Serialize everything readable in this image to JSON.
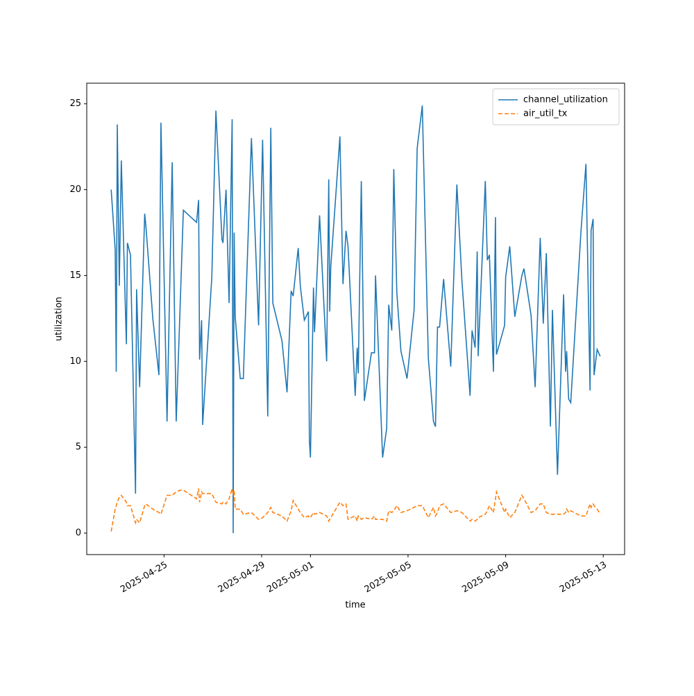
{
  "chart_data": {
    "type": "line",
    "xlabel": "time",
    "ylabel": "utilization",
    "x": [
      "2025-04-22T20:00",
      "2025-04-23T00:00",
      "2025-04-23T01:00",
      "2025-04-23T02:00",
      "2025-04-23T04:00",
      "2025-04-23T06:00",
      "2025-04-23T11:00",
      "2025-04-23T12:00",
      "2025-04-23T15:00",
      "2025-04-23T20:00",
      "2025-04-23T21:00",
      "2025-04-24T00:00",
      "2025-04-24T05:00",
      "2025-04-24T06:00",
      "2025-04-24T13:00",
      "2025-04-24T19:00",
      "2025-04-24T21:00",
      "2025-04-25T03:00",
      "2025-04-25T08:00",
      "2025-04-25T12:00",
      "2025-04-25T16:00",
      "2025-04-25T19:00",
      "2025-04-26T08:00",
      "2025-04-26T10:00",
      "2025-04-26T11:00",
      "2025-04-26T13:00",
      "2025-04-26T14:00",
      "2025-04-26T23:00",
      "2025-04-27T03:00",
      "2025-04-27T09:00",
      "2025-04-27T10:00",
      "2025-04-27T13:00",
      "2025-04-27T16:00",
      "2025-04-27T19:00",
      "2025-04-27T20:00",
      "2025-04-27T21:00",
      "2025-04-27T22:00",
      "2025-04-28T03:00",
      "2025-04-28T06:00",
      "2025-04-28T14:00",
      "2025-04-28T21:00",
      "2025-04-29T01:00",
      "2025-04-29T06:00",
      "2025-04-29T09:00",
      "2025-04-29T11:00",
      "2025-04-29T20:00",
      "2025-04-30T01:00",
      "2025-04-30T05:00",
      "2025-04-30T07:00",
      "2025-04-30T12:00",
      "2025-04-30T14:00",
      "2025-04-30T18:00",
      "2025-04-30T22:00",
      "2025-04-30T23:00",
      "2025-05-01T00:00",
      "2025-05-01T03:00",
      "2025-05-01T04:00",
      "2025-05-01T09:00",
      "2025-05-01T16:00",
      "2025-05-01T18:00",
      "2025-05-01T19:00",
      "2025-05-01T20:00",
      "2025-05-02T05:00",
      "2025-05-02T08:00",
      "2025-05-02T11:00",
      "2025-05-02T13:00",
      "2025-05-02T16:00",
      "2025-05-02T20:00",
      "2025-05-02T22:00",
      "2025-05-02T23:00",
      "2025-05-03T02:00",
      "2025-05-03T05:00",
      "2025-05-03T12:00",
      "2025-05-03T15:00",
      "2025-05-03T16:00",
      "2025-05-03T23:00",
      "2025-05-04T03:00",
      "2025-05-04T05:00",
      "2025-05-04T08:00",
      "2025-05-04T10:00",
      "2025-05-04T13:00",
      "2025-05-04T17:00",
      "2025-05-04T23:00",
      "2025-05-05T06:00",
      "2025-05-05T09:00",
      "2025-05-05T14:00",
      "2025-05-05T20:00",
      "2025-05-06T01:00",
      "2025-05-06T03:00",
      "2025-05-06T05:00",
      "2025-05-06T07:00",
      "2025-05-06T11:00",
      "2025-05-06T18:00",
      "2025-05-07T00:00",
      "2025-05-07T05:00",
      "2025-05-07T13:00",
      "2025-05-07T15:00",
      "2025-05-07T18:00",
      "2025-05-07T20:00",
      "2025-05-07T21:00",
      "2025-05-08T04:00",
      "2025-05-08T06:00",
      "2025-05-08T08:00",
      "2025-05-08T12:00",
      "2025-05-08T14:00",
      "2025-05-08T15:00",
      "2025-05-08T23:00",
      "2025-05-09T00:00",
      "2025-05-09T04:00",
      "2025-05-09T09:00",
      "2025-05-09T16:00",
      "2025-05-09T18:00",
      "2025-05-10T01:00",
      "2025-05-10T05:00",
      "2025-05-10T10:00",
      "2025-05-10T13:00",
      "2025-05-10T16:00",
      "2025-05-10T20:00",
      "2025-05-10T22:00",
      "2025-05-11T03:00",
      "2025-05-11T09:00",
      "2025-05-11T11:00",
      "2025-05-11T12:00",
      "2025-05-11T14:00",
      "2025-05-11T16:00",
      "2025-05-12T02:00",
      "2025-05-12T07:00",
      "2025-05-12T11:00",
      "2025-05-12T12:00",
      "2025-05-12T14:00",
      "2025-05-12T15:00",
      "2025-05-12T18:00",
      "2025-05-12T21:00"
    ],
    "series": [
      {
        "name": "channel_utilization",
        "color": "#1f77b4",
        "linestyle": "solid",
        "values": [
          20.0,
          16.5,
          9.4,
          23.8,
          14.4,
          21.7,
          11.0,
          16.9,
          16.2,
          2.3,
          14.2,
          8.5,
          18.6,
          18.0,
          12.5,
          9.2,
          23.9,
          6.5,
          21.6,
          6.5,
          13.5,
          18.8,
          18.1,
          19.4,
          10.1,
          12.4,
          6.3,
          14.9,
          24.6,
          17.1,
          16.9,
          20.0,
          13.4,
          24.1,
          0.0,
          17.5,
          12.6,
          9.0,
          9.0,
          23.0,
          12.1,
          22.9,
          6.8,
          23.6,
          13.4,
          11.2,
          8.2,
          14.1,
          13.8,
          16.6,
          14.4,
          12.4,
          12.9,
          5.4,
          4.4,
          14.3,
          11.7,
          18.5,
          10.0,
          20.6,
          12.9,
          15.5,
          23.1,
          14.5,
          17.6,
          16.7,
          13.0,
          8.0,
          10.8,
          9.3,
          20.5,
          7.7,
          10.5,
          10.5,
          15.0,
          4.4,
          6.1,
          13.3,
          11.8,
          21.2,
          14.0,
          10.6,
          9.0,
          13.0,
          22.4,
          24.9,
          10.2,
          6.5,
          6.2,
          12.0,
          12.0,
          14.8,
          9.7,
          20.3,
          14.7,
          8.0,
          11.8,
          10.8,
          16.4,
          10.3,
          20.5,
          15.9,
          16.2,
          9.4,
          18.4,
          10.4,
          12.1,
          14.9,
          16.7,
          12.6,
          15.0,
          15.4,
          12.7,
          8.5,
          17.2,
          12.2,
          16.3,
          6.2,
          13.0,
          3.4,
          13.9,
          9.4,
          10.6,
          7.8,
          7.6,
          17.5,
          21.5,
          8.3,
          17.6,
          18.3,
          9.2,
          10.7,
          10.3
        ]
      },
      {
        "name": "air_util_tx",
        "color": "#ff7f0e",
        "linestyle": "dashed",
        "values": [
          0.1,
          1.4,
          1.6,
          1.8,
          2.1,
          2.2,
          1.8,
          1.6,
          1.6,
          0.6,
          0.8,
          0.6,
          1.6,
          1.7,
          1.4,
          1.2,
          1.1,
          2.2,
          2.2,
          2.4,
          2.5,
          2.5,
          2.0,
          2.6,
          1.8,
          2.4,
          2.3,
          2.3,
          1.8,
          1.7,
          1.8,
          1.7,
          2.0,
          2.6,
          2.2,
          2.5,
          1.4,
          1.4,
          1.1,
          1.2,
          0.8,
          0.9,
          1.2,
          1.5,
          1.2,
          1.0,
          0.7,
          1.3,
          1.9,
          1.4,
          1.2,
          0.9,
          1.0,
          0.9,
          0.9,
          1.2,
          1.1,
          1.2,
          1.0,
          0.7,
          0.8,
          0.9,
          1.8,
          1.6,
          1.7,
          0.8,
          0.9,
          1.0,
          0.7,
          1.0,
          0.8,
          0.9,
          0.8,
          1.0,
          0.8,
          0.8,
          0.7,
          1.3,
          1.2,
          1.3,
          1.6,
          1.2,
          1.3,
          1.5,
          1.6,
          1.6,
          0.9,
          1.5,
          1.0,
          1.2,
          1.6,
          1.7,
          1.2,
          1.3,
          1.2,
          0.7,
          0.8,
          0.7,
          0.8,
          0.9,
          1.1,
          1.3,
          1.6,
          1.2,
          2.0,
          2.4,
          1.2,
          1.4,
          0.9,
          1.2,
          2.2,
          2.0,
          1.2,
          1.3,
          1.7,
          1.7,
          1.2,
          1.1,
          1.1,
          1.1,
          1.1,
          1.2,
          1.4,
          1.2,
          1.3,
          1.0,
          1.0,
          1.7,
          1.5,
          1.7,
          1.6,
          1.4,
          1.1
        ]
      }
    ],
    "xlim": [
      "2025-04-21T20:00",
      "2025-05-13T21:00"
    ],
    "xticks": [
      "2025-04-25",
      "2025-04-29",
      "2025-05-01",
      "2025-05-05",
      "2025-05-09",
      "2025-05-13"
    ],
    "ylim": [
      -1.25,
      26.2
    ],
    "yticks": [
      0,
      5,
      10,
      15,
      20,
      25
    ],
    "grid": false,
    "legend": "upper right"
  }
}
